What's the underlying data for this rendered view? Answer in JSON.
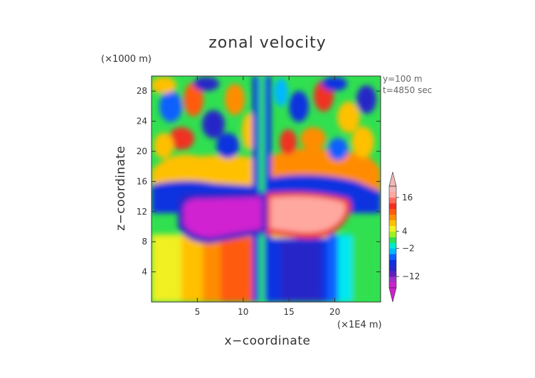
{
  "chart_data": {
    "type": "heatmap",
    "title": "zonal velocity",
    "xlabel": "x−coordinate",
    "ylabel": "z−coordinate",
    "x_unit": "(×1E4 m)",
    "y_unit": "(×1000 m)",
    "annotations": [
      "y=100 m",
      "t=4850 sec"
    ],
    "xlim": [
      0,
      25
    ],
    "ylim": [
      0,
      30
    ],
    "xticks": [
      5,
      10,
      15,
      20
    ],
    "xtick_labels": [
      "5",
      "10",
      "15",
      "20"
    ],
    "yticks": [
      4,
      8,
      12,
      16,
      20,
      24,
      28
    ],
    "ytick_labels": [
      "4",
      "8",
      "12",
      "16",
      "20",
      "24",
      "28"
    ],
    "colorbar": {
      "levels": [
        -20,
        -16,
        -12,
        -10,
        -8,
        -6,
        -4,
        -2,
        0,
        2,
        4,
        6,
        8,
        10,
        12,
        14,
        16,
        18
      ],
      "colors": [
        "#d020d0",
        "#a030c8",
        "#6020c0",
        "#2828c8",
        "#1030e0",
        "#1060ff",
        "#00b8ff",
        "#00e8d0",
        "#30e050",
        "#a0f020",
        "#f0f020",
        "#ffc000",
        "#ff8c00",
        "#ff5a10",
        "#f03020",
        "#ff6a5a",
        "#ffa8a0",
        "#f0b8b8"
      ],
      "tick_values": [
        16,
        4,
        -2,
        -12
      ],
      "tick_labels": [
        "16",
        "4",
        "−2",
        "−12"
      ]
    }
  }
}
